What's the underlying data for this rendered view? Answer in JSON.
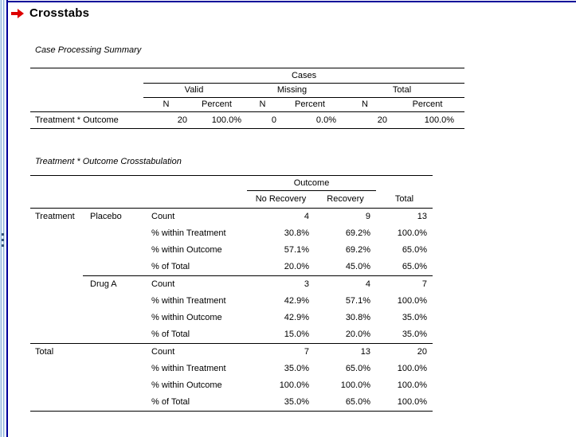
{
  "window": {
    "heading": "Crosstabs"
  },
  "colors": {
    "pane_border_navy": "#000099",
    "heading_arrow_red": "#dd0000",
    "splitter_blue": "#8fb4da",
    "table_rule_black": "#000000"
  },
  "case_processing_table": {
    "title": "Case Processing Summary",
    "span_header": "Cases",
    "group_headers": [
      "Valid",
      "Missing",
      "Total"
    ],
    "sub_headers": [
      "N",
      "Percent",
      "N",
      "Percent",
      "N",
      "Percent"
    ],
    "rows": [
      {
        "label": "Treatment * Outcome",
        "values": [
          "20",
          "100.0%",
          "0",
          "0.0%",
          "20",
          "100.0%"
        ]
      }
    ]
  },
  "crosstab_table": {
    "title": "Treatment * Outcome Crosstabulation",
    "span_header": "Outcome",
    "col_headers": [
      "No Recovery",
      "Recovery"
    ],
    "total_header": "Total",
    "rows": [
      {
        "dim": "Treatment",
        "cat": "Placebo",
        "stat": "Count",
        "values": [
          "4",
          "9",
          "13"
        ]
      },
      {
        "dim": "",
        "cat": "",
        "stat": "% within Treatment",
        "values": [
          "30.8%",
          "69.2%",
          "100.0%"
        ]
      },
      {
        "dim": "",
        "cat": "",
        "stat": "% within Outcome",
        "values": [
          "57.1%",
          "69.2%",
          "65.0%"
        ]
      },
      {
        "dim": "",
        "cat": "",
        "stat": "% of Total",
        "values": [
          "20.0%",
          "45.0%",
          "65.0%"
        ]
      },
      {
        "dim": "",
        "cat": "Drug A",
        "stat": "Count",
        "values": [
          "3",
          "4",
          "7"
        ],
        "rule": "cat"
      },
      {
        "dim": "",
        "cat": "",
        "stat": "% within Treatment",
        "values": [
          "42.9%",
          "57.1%",
          "100.0%"
        ]
      },
      {
        "dim": "",
        "cat": "",
        "stat": "% within Outcome",
        "values": [
          "42.9%",
          "30.8%",
          "35.0%"
        ]
      },
      {
        "dim": "",
        "cat": "",
        "stat": "% of Total",
        "values": [
          "15.0%",
          "20.0%",
          "35.0%"
        ]
      },
      {
        "dim": "Total",
        "cat": "",
        "stat": "Count",
        "values": [
          "7",
          "13",
          "20"
        ],
        "rule": "full"
      },
      {
        "dim": "",
        "cat": "",
        "stat": "% within Treatment",
        "values": [
          "35.0%",
          "65.0%",
          "100.0%"
        ]
      },
      {
        "dim": "",
        "cat": "",
        "stat": "% within Outcome",
        "values": [
          "100.0%",
          "100.0%",
          "100.0%"
        ]
      },
      {
        "dim": "",
        "cat": "",
        "stat": "% of Total",
        "values": [
          "35.0%",
          "65.0%",
          "100.0%"
        ]
      }
    ]
  }
}
